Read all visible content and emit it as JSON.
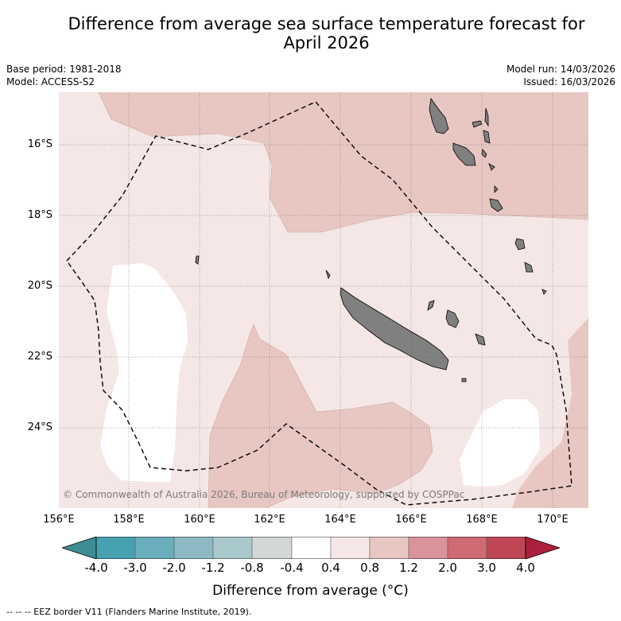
{
  "title_line1": "Difference from average sea surface temperature forecast for",
  "title_line2": "April 2026",
  "base_period": "Base period: 1981-2018",
  "model": "Model: ACCESS-S2",
  "model_run": "Model run: 14/03/2026",
  "issued": "Issued: 16/03/2026",
  "lat_labels": [
    "16°S",
    "18°S",
    "20°S",
    "22°S",
    "24°S"
  ],
  "lon_labels": [
    "156°E",
    "158°E",
    "160°E",
    "162°E",
    "164°E",
    "166°E",
    "168°E",
    "170°E"
  ],
  "copyright": "© Commonwealth of Australia 2026, Bureau of Meteorology, supported by COSPPac",
  "colorbar": {
    "title": "Difference from average (°C)",
    "tick_labels": [
      "-4.0",
      "-3.0",
      "-2.0",
      "-1.2",
      "-0.8",
      "-0.4",
      "0.4",
      "0.8",
      "1.2",
      "2.0",
      "3.0",
      "4.0"
    ],
    "colors": {
      "below": "#3e8d96",
      "bins": [
        "#46a2b1",
        "#6aaebd",
        "#8cb9c4",
        "#a9c8cb",
        "#d2d6d7",
        "#ffffff",
        "#f5e7e5",
        "#e8c7c2",
        "#d8949a",
        "#cd6a73",
        "#bf4655"
      ],
      "above": "#ad1f3c"
    }
  },
  "map_colors": {
    "background": "#f5e7e5",
    "warm_zone": "#e8c7c2",
    "neutral_zone": "#ffffff",
    "land": "#808080"
  },
  "footnote": "--  --  -- EEZ border V11 (Flanders Marine Institute, 2019)."
}
